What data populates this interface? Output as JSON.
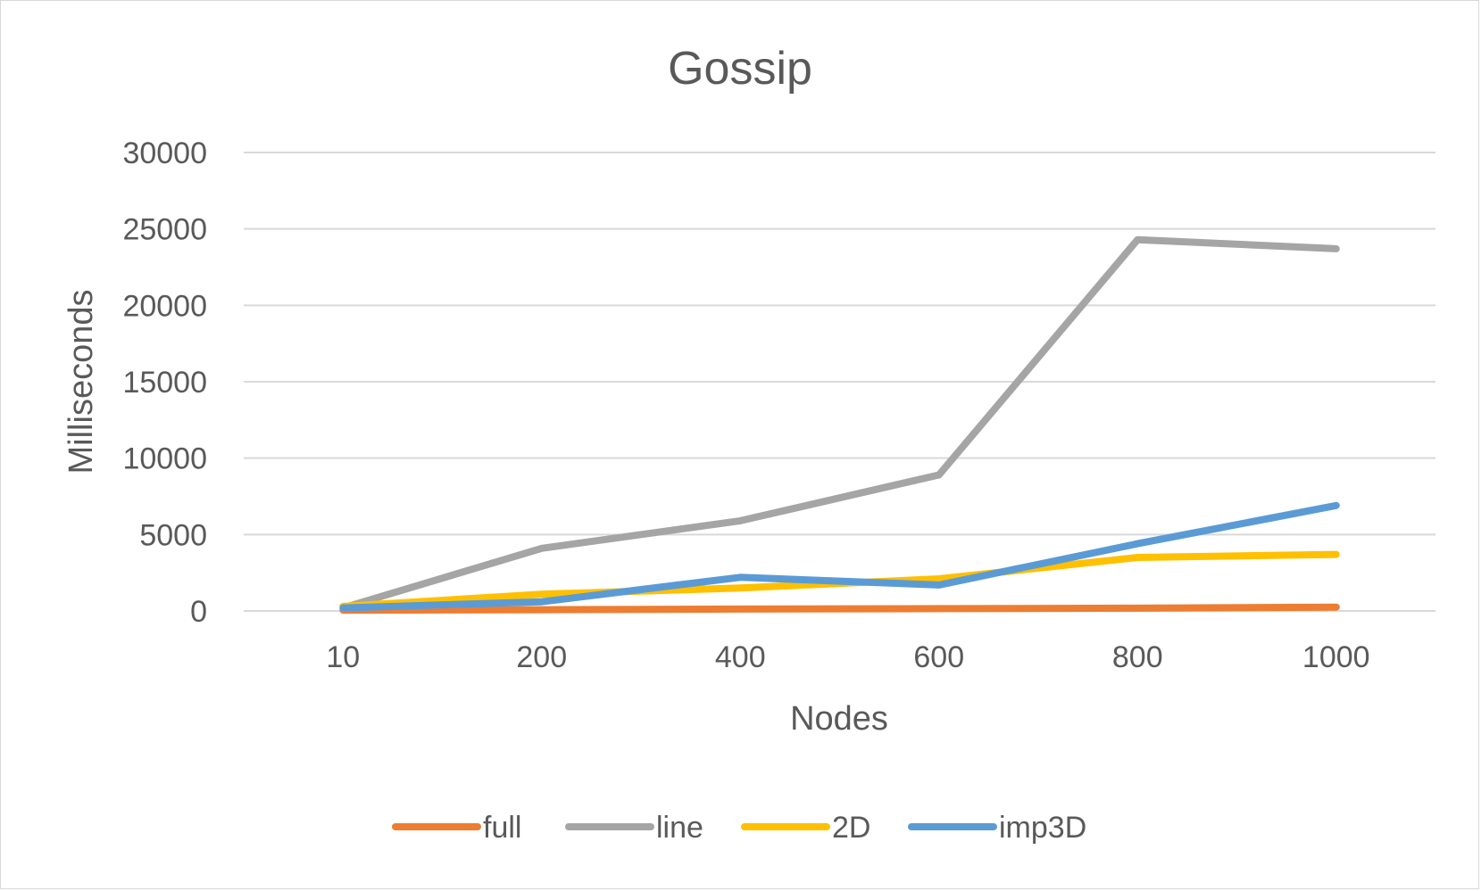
{
  "chart_data": {
    "type": "line",
    "title": "Gossip",
    "xlabel": "Nodes",
    "ylabel": "Milliseconds",
    "categories": [
      "10",
      "200",
      "400",
      "600",
      "800",
      "1000"
    ],
    "ylim": [
      0,
      30000
    ],
    "yticks": [
      "0",
      "5000",
      "10000",
      "15000",
      "20000",
      "25000",
      "30000"
    ],
    "grid": true,
    "legend_position": "bottom",
    "series": [
      {
        "name": "full",
        "color": "#ed7d31",
        "values": [
          50,
          80,
          120,
          150,
          180,
          250
        ]
      },
      {
        "name": "line",
        "color": "#a5a5a5",
        "values": [
          200,
          4100,
          5900,
          8900,
          24300,
          23700
        ]
      },
      {
        "name": "2D",
        "color": "#ffc000",
        "values": [
          300,
          1100,
          1500,
          2100,
          3500,
          3700
        ]
      },
      {
        "name": "imp3D",
        "color": "#5b9bd5",
        "values": [
          200,
          600,
          2200,
          1700,
          4400,
          6900
        ]
      }
    ]
  }
}
